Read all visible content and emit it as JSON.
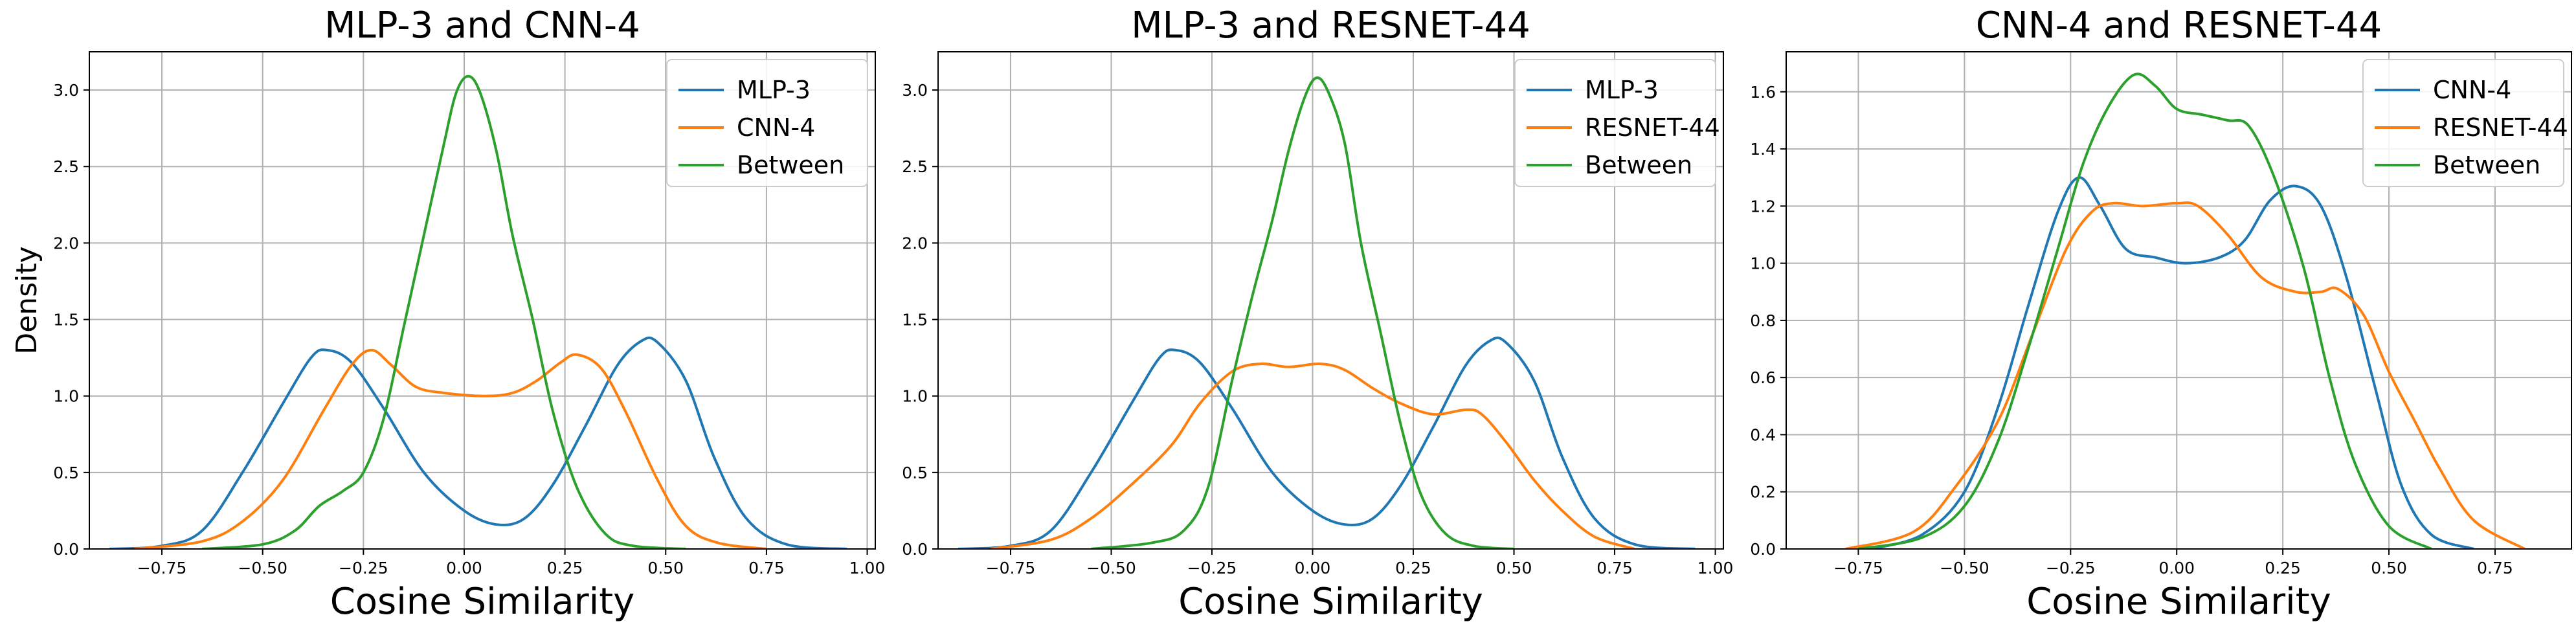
{
  "figure": {
    "ylabel": "Density"
  },
  "chart_data": [
    {
      "type": "line",
      "title": "MLP-3 and CNN-4",
      "xlabel": "Cosine Similarity",
      "ylabel": "Density",
      "xlim": [
        -0.93,
        1.02
      ],
      "ylim": [
        0.0,
        3.25
      ],
      "xticks": [
        -0.75,
        -0.5,
        -0.25,
        0.0,
        0.25,
        0.5,
        0.75,
        1.0
      ],
      "xtick_labels": [
        "−0.75",
        "−0.50",
        "−0.25",
        "0.00",
        "0.25",
        "0.50",
        "0.75",
        "1.00"
      ],
      "yticks": [
        0.0,
        0.5,
        1.0,
        1.5,
        2.0,
        2.5,
        3.0
      ],
      "ytick_labels": [
        "0.0",
        "0.5",
        "1.0",
        "1.5",
        "2.0",
        "2.5",
        "3.0"
      ],
      "grid": true,
      "legend_position": "top-right",
      "series": [
        {
          "name": "MLP-3",
          "color": "#1f77b4",
          "points": [
            [
              -0.88,
              0.0
            ],
            [
              -0.75,
              0.02
            ],
            [
              -0.65,
              0.12
            ],
            [
              -0.55,
              0.5
            ],
            [
              -0.45,
              0.95
            ],
            [
              -0.38,
              1.25
            ],
            [
              -0.34,
              1.3
            ],
            [
              -0.28,
              1.22
            ],
            [
              -0.2,
              0.92
            ],
            [
              -0.1,
              0.5
            ],
            [
              0.0,
              0.25
            ],
            [
              0.08,
              0.16
            ],
            [
              0.15,
              0.2
            ],
            [
              0.22,
              0.42
            ],
            [
              0.3,
              0.8
            ],
            [
              0.38,
              1.2
            ],
            [
              0.44,
              1.36
            ],
            [
              0.48,
              1.35
            ],
            [
              0.55,
              1.1
            ],
            [
              0.62,
              0.6
            ],
            [
              0.7,
              0.2
            ],
            [
              0.8,
              0.03
            ],
            [
              0.95,
              0.0
            ]
          ]
        },
        {
          "name": "CNN-4",
          "color": "#ff7f0e",
          "points": [
            [
              -0.82,
              0.0
            ],
            [
              -0.65,
              0.05
            ],
            [
              -0.55,
              0.18
            ],
            [
              -0.45,
              0.45
            ],
            [
              -0.35,
              0.9
            ],
            [
              -0.28,
              1.2
            ],
            [
              -0.23,
              1.3
            ],
            [
              -0.18,
              1.2
            ],
            [
              -0.12,
              1.06
            ],
            [
              -0.05,
              1.02
            ],
            [
              0.05,
              1.0
            ],
            [
              0.12,
              1.02
            ],
            [
              0.18,
              1.1
            ],
            [
              0.24,
              1.22
            ],
            [
              0.28,
              1.27
            ],
            [
              0.34,
              1.18
            ],
            [
              0.4,
              0.9
            ],
            [
              0.48,
              0.45
            ],
            [
              0.55,
              0.15
            ],
            [
              0.63,
              0.04
            ],
            [
              0.75,
              0.0
            ]
          ]
        },
        {
          "name": "Between",
          "color": "#2ca02c",
          "points": [
            [
              -0.65,
              0.0
            ],
            [
              -0.5,
              0.03
            ],
            [
              -0.42,
              0.12
            ],
            [
              -0.36,
              0.28
            ],
            [
              -0.3,
              0.38
            ],
            [
              -0.25,
              0.5
            ],
            [
              -0.2,
              0.85
            ],
            [
              -0.15,
              1.45
            ],
            [
              -0.1,
              2.05
            ],
            [
              -0.05,
              2.65
            ],
            [
              -0.02,
              2.98
            ],
            [
              0.01,
              3.09
            ],
            [
              0.04,
              2.98
            ],
            [
              0.08,
              2.6
            ],
            [
              0.12,
              2.05
            ],
            [
              0.17,
              1.5
            ],
            [
              0.22,
              0.9
            ],
            [
              0.28,
              0.4
            ],
            [
              0.35,
              0.1
            ],
            [
              0.42,
              0.02
            ],
            [
              0.55,
              0.0
            ]
          ]
        }
      ]
    },
    {
      "type": "line",
      "title": "MLP-3 and RESNET-44",
      "xlabel": "Cosine Similarity",
      "ylabel": "",
      "xlim": [
        -0.93,
        1.02
      ],
      "ylim": [
        0.0,
        3.25
      ],
      "xticks": [
        -0.75,
        -0.5,
        -0.25,
        0.0,
        0.25,
        0.5,
        0.75,
        1.0
      ],
      "xtick_labels": [
        "−0.75",
        "−0.50",
        "−0.25",
        "0.00",
        "0.25",
        "0.50",
        "0.75",
        "1.00"
      ],
      "yticks": [
        0.0,
        0.5,
        1.0,
        1.5,
        2.0,
        2.5,
        3.0
      ],
      "ytick_labels": [
        "0.0",
        "0.5",
        "1.0",
        "1.5",
        "2.0",
        "2.5",
        "3.0"
      ],
      "grid": true,
      "legend_position": "top-right",
      "series": [
        {
          "name": "MLP-3",
          "color": "#1f77b4",
          "points": [
            [
              -0.88,
              0.0
            ],
            [
              -0.75,
              0.02
            ],
            [
              -0.65,
              0.12
            ],
            [
              -0.55,
              0.5
            ],
            [
              -0.45,
              0.95
            ],
            [
              -0.38,
              1.25
            ],
            [
              -0.34,
              1.3
            ],
            [
              -0.28,
              1.22
            ],
            [
              -0.2,
              0.92
            ],
            [
              -0.1,
              0.5
            ],
            [
              0.0,
              0.25
            ],
            [
              0.08,
              0.16
            ],
            [
              0.15,
              0.2
            ],
            [
              0.22,
              0.42
            ],
            [
              0.3,
              0.8
            ],
            [
              0.38,
              1.2
            ],
            [
              0.44,
              1.36
            ],
            [
              0.48,
              1.35
            ],
            [
              0.55,
              1.1
            ],
            [
              0.62,
              0.6
            ],
            [
              0.7,
              0.2
            ],
            [
              0.8,
              0.03
            ],
            [
              0.95,
              0.0
            ]
          ]
        },
        {
          "name": "RESNET-44",
          "color": "#ff7f0e",
          "points": [
            [
              -0.8,
              0.0
            ],
            [
              -0.65,
              0.06
            ],
            [
              -0.55,
              0.2
            ],
            [
              -0.45,
              0.42
            ],
            [
              -0.35,
              0.68
            ],
            [
              -0.28,
              0.95
            ],
            [
              -0.2,
              1.16
            ],
            [
              -0.13,
              1.21
            ],
            [
              -0.06,
              1.19
            ],
            [
              0.02,
              1.21
            ],
            [
              0.08,
              1.17
            ],
            [
              0.15,
              1.05
            ],
            [
              0.22,
              0.95
            ],
            [
              0.3,
              0.88
            ],
            [
              0.38,
              0.91
            ],
            [
              0.42,
              0.88
            ],
            [
              0.48,
              0.7
            ],
            [
              0.55,
              0.45
            ],
            [
              0.62,
              0.25
            ],
            [
              0.7,
              0.08
            ],
            [
              0.8,
              0.0
            ]
          ]
        },
        {
          "name": "Between",
          "color": "#2ca02c",
          "points": [
            [
              -0.55,
              0.0
            ],
            [
              -0.4,
              0.04
            ],
            [
              -0.32,
              0.12
            ],
            [
              -0.26,
              0.4
            ],
            [
              -0.2,
              1.1
            ],
            [
              -0.15,
              1.65
            ],
            [
              -0.1,
              2.15
            ],
            [
              -0.06,
              2.6
            ],
            [
              -0.02,
              2.95
            ],
            [
              0.01,
              3.08
            ],
            [
              0.04,
              2.98
            ],
            [
              0.08,
              2.65
            ],
            [
              0.12,
              2.0
            ],
            [
              0.17,
              1.4
            ],
            [
              0.22,
              0.8
            ],
            [
              0.27,
              0.35
            ],
            [
              0.33,
              0.1
            ],
            [
              0.4,
              0.02
            ],
            [
              0.5,
              0.0
            ]
          ]
        }
      ]
    },
    {
      "type": "line",
      "title": "CNN-4 and RESNET-44",
      "xlabel": "Cosine Similarity",
      "ylabel": "",
      "xlim": [
        -0.92,
        0.93
      ],
      "ylim": [
        0.0,
        1.74
      ],
      "xticks": [
        -0.75,
        -0.5,
        -0.25,
        0.0,
        0.25,
        0.5,
        0.75
      ],
      "xtick_labels": [
        "−0.75",
        "−0.50",
        "−0.25",
        "0.00",
        "0.25",
        "0.50",
        "0.75"
      ],
      "yticks": [
        0.0,
        0.2,
        0.4,
        0.6,
        0.8,
        1.0,
        1.2,
        1.4,
        1.6
      ],
      "ytick_labels": [
        "0.0",
        "0.2",
        "0.4",
        "0.6",
        "0.8",
        "1.0",
        "1.2",
        "1.4",
        "1.6"
      ],
      "grid": true,
      "legend_position": "top-right",
      "series": [
        {
          "name": "CNN-4",
          "color": "#1f77b4",
          "points": [
            [
              -0.72,
              0.0
            ],
            [
              -0.6,
              0.05
            ],
            [
              -0.5,
              0.2
            ],
            [
              -0.42,
              0.5
            ],
            [
              -0.35,
              0.85
            ],
            [
              -0.28,
              1.18
            ],
            [
              -0.23,
              1.3
            ],
            [
              -0.18,
              1.2
            ],
            [
              -0.12,
              1.05
            ],
            [
              -0.05,
              1.02
            ],
            [
              0.02,
              1.0
            ],
            [
              0.1,
              1.02
            ],
            [
              0.16,
              1.08
            ],
            [
              0.22,
              1.22
            ],
            [
              0.28,
              1.27
            ],
            [
              0.34,
              1.2
            ],
            [
              0.4,
              0.95
            ],
            [
              0.47,
              0.55
            ],
            [
              0.53,
              0.22
            ],
            [
              0.6,
              0.05
            ],
            [
              0.7,
              0.0
            ]
          ]
        },
        {
          "name": "RESNET-44",
          "color": "#ff7f0e",
          "points": [
            [
              -0.78,
              0.0
            ],
            [
              -0.62,
              0.06
            ],
            [
              -0.52,
              0.22
            ],
            [
              -0.42,
              0.45
            ],
            [
              -0.34,
              0.75
            ],
            [
              -0.26,
              1.05
            ],
            [
              -0.2,
              1.18
            ],
            [
              -0.15,
              1.21
            ],
            [
              -0.08,
              1.2
            ],
            [
              0.0,
              1.21
            ],
            [
              0.05,
              1.2
            ],
            [
              0.12,
              1.1
            ],
            [
              0.2,
              0.95
            ],
            [
              0.28,
              0.9
            ],
            [
              0.34,
              0.9
            ],
            [
              0.38,
              0.91
            ],
            [
              0.44,
              0.82
            ],
            [
              0.5,
              0.62
            ],
            [
              0.56,
              0.45
            ],
            [
              0.62,
              0.28
            ],
            [
              0.7,
              0.1
            ],
            [
              0.82,
              0.0
            ]
          ]
        },
        {
          "name": "Between",
          "color": "#2ca02c",
          "points": [
            [
              -0.75,
              0.0
            ],
            [
              -0.6,
              0.04
            ],
            [
              -0.5,
              0.15
            ],
            [
              -0.42,
              0.38
            ],
            [
              -0.35,
              0.7
            ],
            [
              -0.28,
              1.05
            ],
            [
              -0.22,
              1.35
            ],
            [
              -0.16,
              1.55
            ],
            [
              -0.1,
              1.66
            ],
            [
              -0.05,
              1.62
            ],
            [
              0.0,
              1.54
            ],
            [
              0.06,
              1.52
            ],
            [
              0.12,
              1.5
            ],
            [
              0.17,
              1.48
            ],
            [
              0.23,
              1.3
            ],
            [
              0.3,
              0.98
            ],
            [
              0.36,
              0.6
            ],
            [
              0.42,
              0.3
            ],
            [
              0.5,
              0.08
            ],
            [
              0.6,
              0.0
            ]
          ]
        }
      ]
    }
  ]
}
